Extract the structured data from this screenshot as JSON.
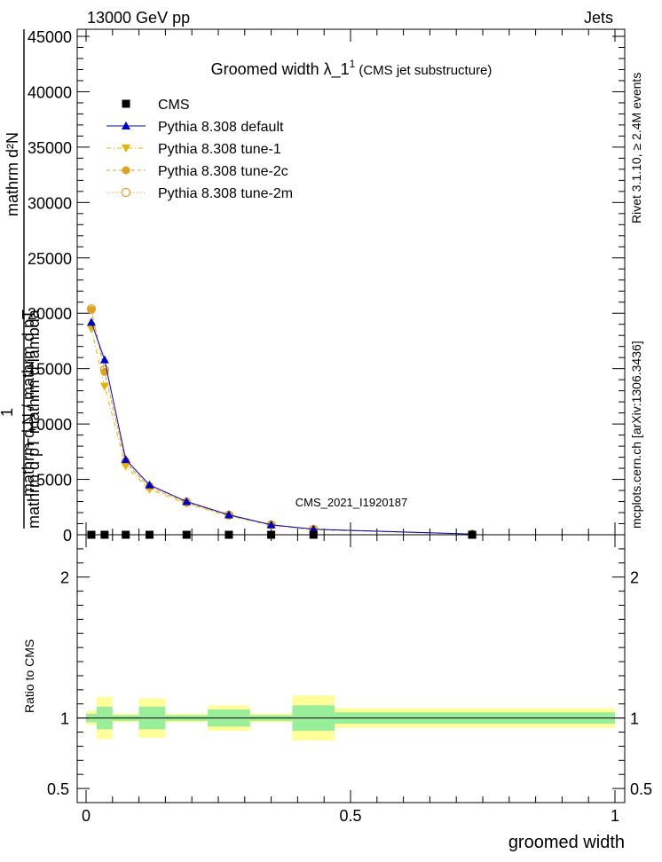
{
  "header": {
    "left": "13000 GeV pp",
    "right": "Jets"
  },
  "side": {
    "rivet": "Rivet 3.1.10, ≥ 2.4M events",
    "mcplots": "mcplots.cern.ch [arXiv:1306.3436]"
  },
  "chart_data": {
    "type": "line",
    "title_main": "Groomed width  λ_1",
    "title_sup": "1",
    "title_note": "(CMS jet substructure)",
    "analysis_label": "CMS_2021_I1920187",
    "ylabel_top": "mathrm d²N",
    "ylabel_bottom": "mathrm d pT mathrm d lambda",
    "ylabel_prefix_num": "1",
    "ylabel_prefix_den": "mathrm d N / mathrm d pT",
    "xlabel": "groomed width",
    "ratio_ylabel": "Ratio to CMS",
    "xlim": [
      0,
      1
    ],
    "ylim": [
      0,
      45000
    ],
    "ratio_ylim": [
      0.4,
      2.3
    ],
    "x_ticks": [
      "0",
      "0.5",
      "1"
    ],
    "y_ticks": [
      "0",
      "5000",
      "10000",
      "15000",
      "20000",
      "25000",
      "30000",
      "35000",
      "40000",
      "45000"
    ],
    "ratio_ticks": [
      "0.5",
      "1",
      "2"
    ],
    "legend": [
      {
        "name": "CMS",
        "marker": "square",
        "color": "#000000"
      },
      {
        "name": "Pythia 8.308 default",
        "marker": "triangle-up",
        "color": "#0000cc"
      },
      {
        "name": "Pythia 8.308 tune-1",
        "marker": "triangle-down",
        "color": "#e8b400"
      },
      {
        "name": "Pythia 8.308 tune-2c",
        "marker": "circle",
        "color": "#e0a020"
      },
      {
        "name": "Pythia 8.308 tune-2m",
        "marker": "circle-open",
        "color": "#e0a020"
      }
    ],
    "cms": {
      "x": [
        0.01,
        0.035,
        0.075,
        0.12,
        0.19,
        0.27,
        0.35,
        0.43,
        0.73
      ],
      "y": [
        0,
        0,
        0,
        0,
        0,
        0,
        0,
        0,
        0
      ]
    },
    "series": [
      {
        "name": "Pythia 8.308 default",
        "x": [
          0.01,
          0.035,
          0.075,
          0.12,
          0.19,
          0.27,
          0.35,
          0.43,
          0.73
        ],
        "y": [
          19200,
          15800,
          6800,
          4500,
          3000,
          1800,
          900,
          500,
          60
        ]
      },
      {
        "name": "Pythia 8.308 tune-1",
        "x": [
          0.01,
          0.035,
          0.075,
          0.12,
          0.19,
          0.27,
          0.35,
          0.43,
          0.73
        ],
        "y": [
          18600,
          13400,
          6200,
          4100,
          2800,
          1700,
          850,
          450,
          50
        ]
      },
      {
        "name": "Pythia 8.308 tune-2c",
        "x": [
          0.01,
          0.035,
          0.075,
          0.12,
          0.19,
          0.27,
          0.35,
          0.43,
          0.73
        ],
        "y": [
          20300,
          14700,
          6500,
          4300,
          2900,
          1750,
          880,
          480,
          55
        ]
      },
      {
        "name": "Pythia 8.308 tune-2m",
        "x": [
          0.01,
          0.035,
          0.075,
          0.12,
          0.19,
          0.27,
          0.35,
          0.43,
          0.73
        ],
        "y": [
          20400,
          14900,
          6600,
          4350,
          2950,
          1780,
          890,
          490,
          56
        ]
      }
    ],
    "ratio_bands": {
      "edges": [
        0,
        0.02,
        0.05,
        0.1,
        0.15,
        0.23,
        0.31,
        0.39,
        0.47,
        1.0
      ],
      "stat": [
        0.03,
        0.08,
        0.02,
        0.08,
        0.02,
        0.06,
        0.02,
        0.09,
        0.04
      ],
      "total": [
        0.05,
        0.15,
        0.03,
        0.14,
        0.03,
        0.09,
        0.03,
        0.16,
        0.07
      ]
    }
  }
}
